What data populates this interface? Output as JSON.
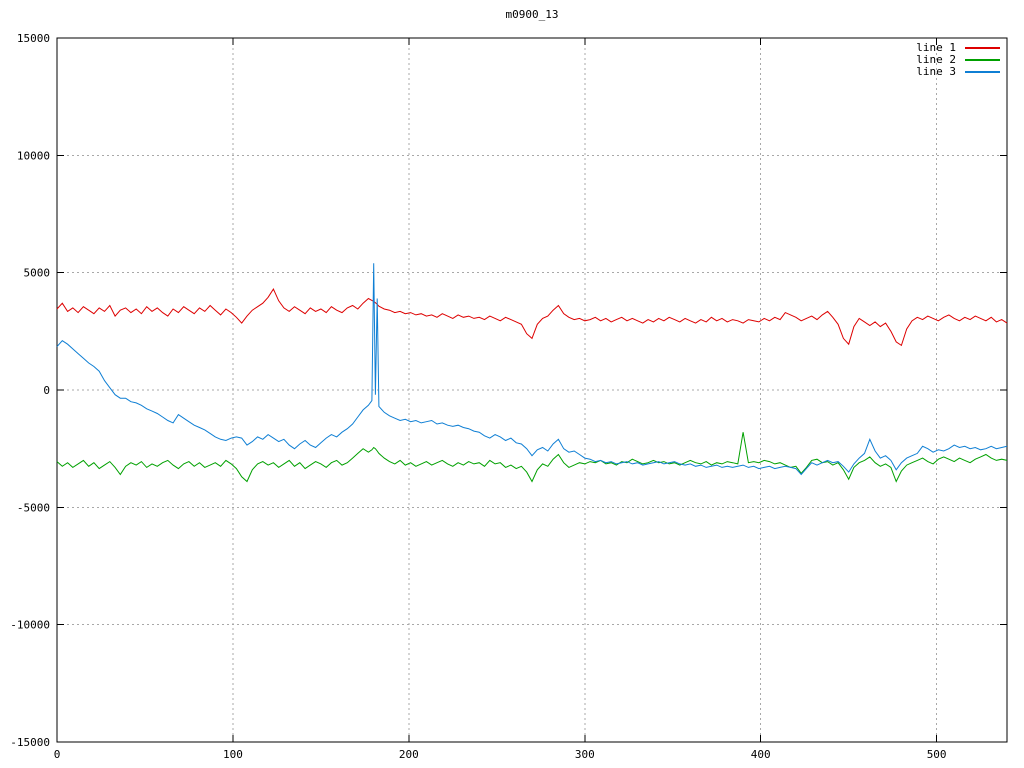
{
  "chart_data": {
    "type": "line",
    "title": "m0900_13",
    "xlabel": "",
    "ylabel": "",
    "xlim": [
      0,
      540
    ],
    "ylim": [
      -15000,
      15000
    ],
    "xticks": [
      0,
      100,
      200,
      300,
      400,
      500
    ],
    "yticks": [
      -15000,
      -10000,
      -5000,
      0,
      5000,
      10000,
      15000
    ],
    "grid": true,
    "grid_style": "dotted",
    "legend_position": "top-right-inside",
    "x": [
      0,
      3,
      6,
      9,
      12,
      15,
      18,
      21,
      24,
      27,
      30,
      33,
      36,
      39,
      42,
      45,
      48,
      51,
      54,
      57,
      60,
      63,
      66,
      69,
      72,
      75,
      78,
      81,
      84,
      87,
      90,
      93,
      96,
      99,
      102,
      105,
      108,
      111,
      114,
      117,
      120,
      123,
      126,
      129,
      132,
      135,
      138,
      141,
      144,
      147,
      150,
      153,
      156,
      159,
      162,
      165,
      168,
      171,
      174,
      177,
      179,
      180,
      181,
      182,
      183,
      186,
      189,
      192,
      195,
      198,
      201,
      204,
      207,
      210,
      213,
      216,
      219,
      222,
      225,
      228,
      231,
      234,
      237,
      240,
      243,
      246,
      249,
      252,
      255,
      258,
      261,
      264,
      267,
      270,
      273,
      276,
      279,
      282,
      285,
      288,
      291,
      294,
      297,
      300,
      303,
      306,
      309,
      312,
      315,
      318,
      321,
      324,
      327,
      330,
      333,
      336,
      339,
      342,
      345,
      348,
      351,
      354,
      357,
      360,
      363,
      366,
      369,
      372,
      375,
      378,
      381,
      384,
      387,
      390,
      393,
      396,
      399,
      402,
      405,
      408,
      411,
      414,
      417,
      420,
      423,
      426,
      429,
      432,
      435,
      438,
      441,
      444,
      447,
      450,
      453,
      456,
      459,
      462,
      465,
      468,
      471,
      474,
      477,
      480,
      483,
      486,
      489,
      492,
      495,
      498,
      501,
      504,
      507,
      510,
      513,
      516,
      519,
      522,
      525,
      528,
      531,
      534,
      537,
      540
    ],
    "series": [
      {
        "name": "line 1",
        "color": "#dd0000",
        "values": [
          3450,
          3700,
          3350,
          3500,
          3300,
          3550,
          3400,
          3250,
          3500,
          3350,
          3600,
          3150,
          3400,
          3500,
          3300,
          3450,
          3250,
          3550,
          3350,
          3500,
          3300,
          3150,
          3450,
          3300,
          3550,
          3400,
          3250,
          3500,
          3350,
          3600,
          3400,
          3200,
          3450,
          3300,
          3100,
          2850,
          3150,
          3400,
          3550,
          3700,
          3950,
          4300,
          3800,
          3500,
          3350,
          3550,
          3400,
          3250,
          3500,
          3350,
          3450,
          3300,
          3550,
          3400,
          3300,
          3500,
          3600,
          3450,
          3700,
          3900,
          3820,
          3780,
          3720,
          3650,
          3570,
          3450,
          3400,
          3300,
          3350,
          3250,
          3300,
          3200,
          3250,
          3150,
          3200,
          3100,
          3250,
          3150,
          3050,
          3200,
          3100,
          3150,
          3050,
          3100,
          3000,
          3150,
          3050,
          2950,
          3100,
          3000,
          2900,
          2800,
          2400,
          2200,
          2800,
          3050,
          3150,
          3400,
          3600,
          3250,
          3100,
          3000,
          3050,
          2950,
          3000,
          3100,
          2950,
          3050,
          2900,
          3000,
          3100,
          2950,
          3050,
          2950,
          2850,
          3000,
          2900,
          3050,
          2950,
          3100,
          3000,
          2900,
          3050,
          2950,
          2850,
          3000,
          2900,
          3100,
          2950,
          3050,
          2900,
          3000,
          2950,
          2850,
          3000,
          2950,
          2900,
          3050,
          2950,
          3100,
          3000,
          3300,
          3200,
          3100,
          2950,
          3050,
          3150,
          3000,
          3200,
          3350,
          3100,
          2800,
          2200,
          1950,
          2700,
          3050,
          2900,
          2750,
          2900,
          2700,
          2850,
          2500,
          2050,
          1900,
          2600,
          2950,
          3100,
          3000,
          3150,
          3050,
          2950,
          3100,
          3200,
          3050,
          2950,
          3100,
          3000,
          3150,
          3050,
          2950,
          3100,
          2900,
          3000,
          2850
        ]
      },
      {
        "name": "line 2",
        "color": "#00a000",
        "values": [
          -3050,
          -3250,
          -3100,
          -3300,
          -3150,
          -3000,
          -3250,
          -3100,
          -3350,
          -3200,
          -3050,
          -3300,
          -3600,
          -3250,
          -3100,
          -3200,
          -3050,
          -3300,
          -3150,
          -3250,
          -3100,
          -3000,
          -3200,
          -3350,
          -3150,
          -3050,
          -3250,
          -3100,
          -3300,
          -3200,
          -3100,
          -3250,
          -3000,
          -3150,
          -3350,
          -3700,
          -3900,
          -3400,
          -3150,
          -3050,
          -3200,
          -3100,
          -3300,
          -3150,
          -3000,
          -3250,
          -3100,
          -3350,
          -3200,
          -3050,
          -3150,
          -3300,
          -3100,
          -3000,
          -3200,
          -3100,
          -2900,
          -2700,
          -2500,
          -2650,
          -2550,
          -2450,
          -2500,
          -2600,
          -2700,
          -2900,
          -3050,
          -3150,
          -3000,
          -3200,
          -3100,
          -3250,
          -3150,
          -3050,
          -3200,
          -3100,
          -3000,
          -3150,
          -3250,
          -3100,
          -3200,
          -3050,
          -3150,
          -3100,
          -3250,
          -3000,
          -3150,
          -3100,
          -3300,
          -3200,
          -3350,
          -3250,
          -3500,
          -3900,
          -3400,
          -3150,
          -3250,
          -2950,
          -2750,
          -3100,
          -3300,
          -3200,
          -3100,
          -3150,
          -3050,
          -3100,
          -3000,
          -3150,
          -3100,
          -3200,
          -3050,
          -3100,
          -2950,
          -3050,
          -3150,
          -3100,
          -3000,
          -3100,
          -3050,
          -3150,
          -3100,
          -3200,
          -3100,
          -3000,
          -3100,
          -3150,
          -3050,
          -3200,
          -3100,
          -3150,
          -3050,
          -3100,
          -3150,
          -1800,
          -3100,
          -3050,
          -3100,
          -3000,
          -3050,
          -3150,
          -3100,
          -3200,
          -3300,
          -3250,
          -3550,
          -3300,
          -3000,
          -2950,
          -3100,
          -3050,
          -3200,
          -3100,
          -3400,
          -3800,
          -3300,
          -3100,
          -3000,
          -2850,
          -3100,
          -3250,
          -3150,
          -3300,
          -3900,
          -3450,
          -3200,
          -3100,
          -3000,
          -2900,
          -3050,
          -3150,
          -2950,
          -2850,
          -2950,
          -3050,
          -2900,
          -3000,
          -3100,
          -2950,
          -2850,
          -2750,
          -2900,
          -3000,
          -2950,
          -3000
        ]
      },
      {
        "name": "line 3",
        "color": "#0f7fd4",
        "values": [
          1850,
          2100,
          1950,
          1750,
          1550,
          1350,
          1150,
          1000,
          800,
          400,
          100,
          -200,
          -350,
          -350,
          -500,
          -550,
          -650,
          -800,
          -900,
          -1000,
          -1150,
          -1300,
          -1400,
          -1050,
          -1200,
          -1350,
          -1500,
          -1600,
          -1700,
          -1850,
          -2000,
          -2100,
          -2150,
          -2050,
          -2000,
          -2050,
          -2350,
          -2200,
          -2000,
          -2100,
          -1900,
          -2050,
          -2200,
          -2100,
          -2350,
          -2500,
          -2300,
          -2150,
          -2350,
          -2450,
          -2250,
          -2050,
          -1900,
          -2000,
          -1800,
          -1650,
          -1450,
          -1150,
          -850,
          -650,
          -450,
          5400,
          -200,
          3900,
          -700,
          -950,
          -1100,
          -1200,
          -1300,
          -1250,
          -1350,
          -1300,
          -1400,
          -1350,
          -1300,
          -1450,
          -1400,
          -1500,
          -1550,
          -1500,
          -1600,
          -1650,
          -1750,
          -1800,
          -1950,
          -2050,
          -1900,
          -2000,
          -2150,
          -2050,
          -2250,
          -2300,
          -2500,
          -2800,
          -2550,
          -2450,
          -2600,
          -2300,
          -2100,
          -2500,
          -2650,
          -2600,
          -2750,
          -2900,
          -2950,
          -3050,
          -3000,
          -3100,
          -3050,
          -3150,
          -3100,
          -3050,
          -3150,
          -3100,
          -3200,
          -3150,
          -3100,
          -3050,
          -3150,
          -3100,
          -3050,
          -3150,
          -3200,
          -3150,
          -3250,
          -3200,
          -3300,
          -3250,
          -3200,
          -3300,
          -3250,
          -3300,
          -3250,
          -3200,
          -3300,
          -3250,
          -3350,
          -3300,
          -3250,
          -3350,
          -3300,
          -3250,
          -3300,
          -3350,
          -3600,
          -3350,
          -3100,
          -3200,
          -3100,
          -3000,
          -3100,
          -3050,
          -3250,
          -3500,
          -3150,
          -2900,
          -2700,
          -2100,
          -2600,
          -2900,
          -2800,
          -3000,
          -3400,
          -3100,
          -2900,
          -2800,
          -2700,
          -2400,
          -2500,
          -2650,
          -2550,
          -2600,
          -2500,
          -2350,
          -2450,
          -2400,
          -2500,
          -2450,
          -2550,
          -2500,
          -2400,
          -2500,
          -2450,
          -2400
        ]
      }
    ]
  }
}
